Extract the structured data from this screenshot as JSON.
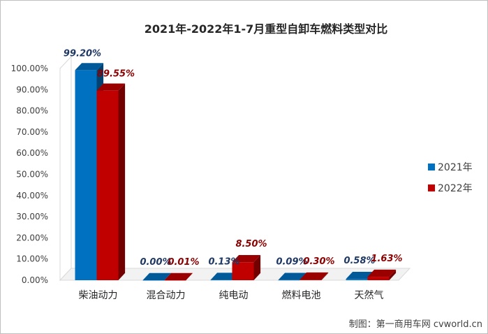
{
  "chart_data": {
    "type": "bar",
    "title": "2021年-2022年1-7月重型自卸车燃料类型对比",
    "categories": [
      "柴油动力",
      "混合动力",
      "纯电动",
      "燃料电池",
      "天然气"
    ],
    "series": [
      {
        "name": "2021年",
        "values": [
          99.2,
          0.0,
          0.13,
          0.09,
          0.58
        ],
        "labels": [
          "99.20%",
          "0.00%",
          "0.13%",
          "0.09%",
          "0.58%"
        ],
        "color": "#0070c0",
        "label_color": "#1f3864"
      },
      {
        "name": "2022年",
        "values": [
          89.55,
          0.01,
          8.5,
          0.3,
          1.63
        ],
        "labels": [
          "89.55%",
          "0.01%",
          "8.50%",
          "0.30%",
          "1.63%"
        ],
        "color": "#c00000",
        "label_color": "#8b0000"
      }
    ],
    "y_ticks": [
      "0.00%",
      "10.00%",
      "20.00%",
      "30.00%",
      "40.00%",
      "50.00%",
      "60.00%",
      "70.00%",
      "80.00%",
      "90.00%",
      "100.00%"
    ],
    "ylim": [
      0,
      100
    ],
    "grid": false,
    "legend_position": "right",
    "style": "3d-column"
  },
  "credit": "制图：第一商用车网 cvworld.cn"
}
